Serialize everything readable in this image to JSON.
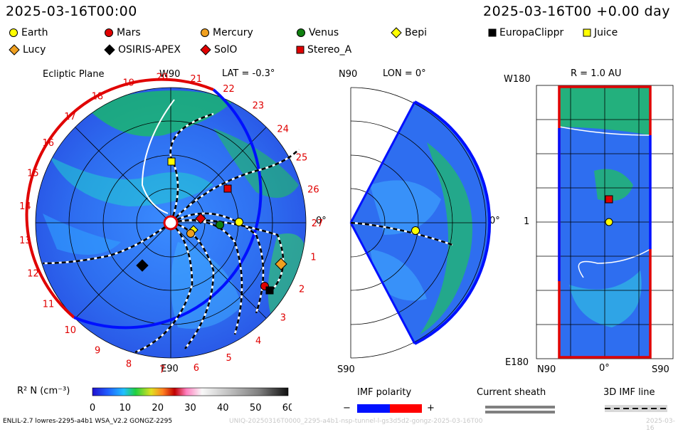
{
  "header": {
    "date_left": "2025-03-16T00:00",
    "date_right": "2025-03-16T00 +0.00 day"
  },
  "legend": [
    {
      "label": "Earth",
      "shape": "circle",
      "color": "#ffff00"
    },
    {
      "label": "Mars",
      "shape": "circle",
      "color": "#e00000"
    },
    {
      "label": "Mercury",
      "shape": "circle",
      "color": "#f0a020"
    },
    {
      "label": "Venus",
      "shape": "circle",
      "color": "#108010"
    },
    {
      "label": "Bepi",
      "shape": "diamond",
      "color": "#ffff00"
    },
    {
      "label": "EuropaClippr",
      "shape": "square",
      "color": "#000000"
    },
    {
      "label": "Juice",
      "shape": "square",
      "color": "#ffff00"
    },
    {
      "label": "Lucy",
      "shape": "diamond",
      "color": "#f0a020"
    },
    {
      "label": "OSIRIS-APEX",
      "shape": "diamond",
      "color": "#000000"
    },
    {
      "label": "SolO",
      "shape": "diamond",
      "color": "#e00000"
    },
    {
      "label": "Stereo_A",
      "shape": "square",
      "color": "#e00000"
    }
  ],
  "ecliptic": {
    "title": "Ecliptic Plane",
    "top_label": "W90",
    "bottom_label": "E90",
    "right_label": "0°",
    "lat_label": "LAT = -0.3°",
    "carrington_numbers": [
      "1",
      "2",
      "3",
      "4",
      "5",
      "6",
      "7",
      "8",
      "9",
      "10",
      "11",
      "12",
      "13",
      "14",
      "15",
      "16",
      "17",
      "18",
      "19",
      "20",
      "21",
      "22",
      "23",
      "24",
      "25",
      "26",
      "27"
    ]
  },
  "meridional": {
    "top_label": "N90",
    "bottom_label": "S90",
    "lon_label": "LON = 0°",
    "right_label": "0°"
  },
  "rectmap": {
    "title": "R = 1.0 AU",
    "top_left": "W180",
    "bottom_left": "E180",
    "mid_left": "1",
    "bottom_axis": [
      "N90",
      "0°",
      "S90"
    ]
  },
  "colorbar": {
    "label": "R² N (cm⁻³)",
    "ticks": [
      "0",
      "10",
      "20",
      "30",
      "40",
      "50",
      "60"
    ],
    "range": [
      0,
      60
    ]
  },
  "bottom_legends": {
    "imf_polarity": "IMF polarity",
    "minus": "−",
    "plus": "+",
    "current_sheath": "Current sheath",
    "imf_line": "3D IMF line"
  },
  "footer": {
    "model": "ENLIL-2.7 lowres-2295-a4b1 WSA_V2.2 GONGZ-2295",
    "run": "UNIQ-20250316T0000_2295-a4b1-nsp-tunnel-l-gs3d5d2-gongz-2025-03-16T00",
    "date": "2025-03-16"
  },
  "colors": {
    "negative_polarity": "#0010ff",
    "positive_polarity": "#ff0000",
    "sheath": "#808080"
  }
}
